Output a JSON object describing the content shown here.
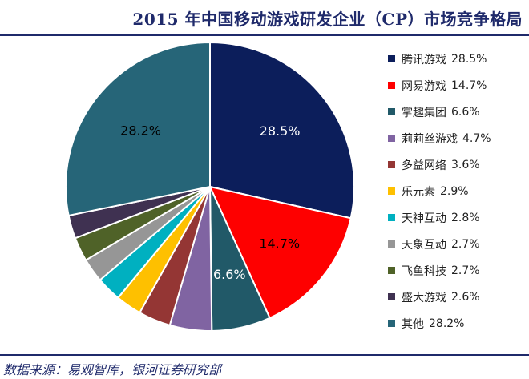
{
  "title": "2015 年中国移动游戏研发企业（CP）市场竞争格局",
  "source": "数据来源：易观智库，银河证券研究部",
  "chart_data": {
    "type": "pie",
    "title": "2015 年中国移动游戏研发企业（CP）市场竞争格局",
    "start": "12 o'clock, clockwise",
    "series": [
      {
        "name": "腾讯游戏",
        "value": 28.5,
        "label": "28.5%",
        "color": "#0c1e5b"
      },
      {
        "name": "网易游戏",
        "value": 14.7,
        "label": "14.7%",
        "color": "#fe0000"
      },
      {
        "name": "掌趣集团",
        "value": 6.6,
        "label": "6.6%",
        "color": "#215968"
      },
      {
        "name": "莉莉丝游戏",
        "value": 4.7,
        "label": "",
        "color": "#8064a2"
      },
      {
        "name": "多益网络",
        "value": 3.6,
        "label": "",
        "color": "#943634"
      },
      {
        "name": "乐元素",
        "value": 2.9,
        "label": "",
        "color": "#fec000"
      },
      {
        "name": "天神互动",
        "value": 2.8,
        "label": "",
        "color": "#00b0c0"
      },
      {
        "name": "天象互动",
        "value": 2.7,
        "label": "",
        "color": "#969696"
      },
      {
        "name": "飞鱼科技",
        "value": 2.7,
        "label": "",
        "color": "#4f6228"
      },
      {
        "name": "盛大游戏",
        "value": 2.6,
        "label": "",
        "color": "#3f3151"
      },
      {
        "name": "其他",
        "value": 28.2,
        "label": "28.2%",
        "color": "#266578"
      }
    ],
    "legend_position": "right",
    "legend": [
      {
        "name": "腾讯游戏",
        "value": "28.5%"
      },
      {
        "name": "网易游戏",
        "value": "14.7%"
      },
      {
        "name": "掌趣集团",
        "value": "6.6%"
      },
      {
        "name": "莉莉丝游戏",
        "value": "4.7%"
      },
      {
        "name": "多益网络",
        "value": "3.6%"
      },
      {
        "name": "乐元素",
        "value": "2.9%"
      },
      {
        "name": "天神互动",
        "value": "2.8%"
      },
      {
        "name": "天象互动",
        "value": "2.7%"
      },
      {
        "name": "飞鱼科技",
        "value": "2.7%"
      },
      {
        "name": "盛大游戏",
        "value": "2.6%"
      },
      {
        "name": "其他",
        "value": "28.2%"
      }
    ]
  }
}
